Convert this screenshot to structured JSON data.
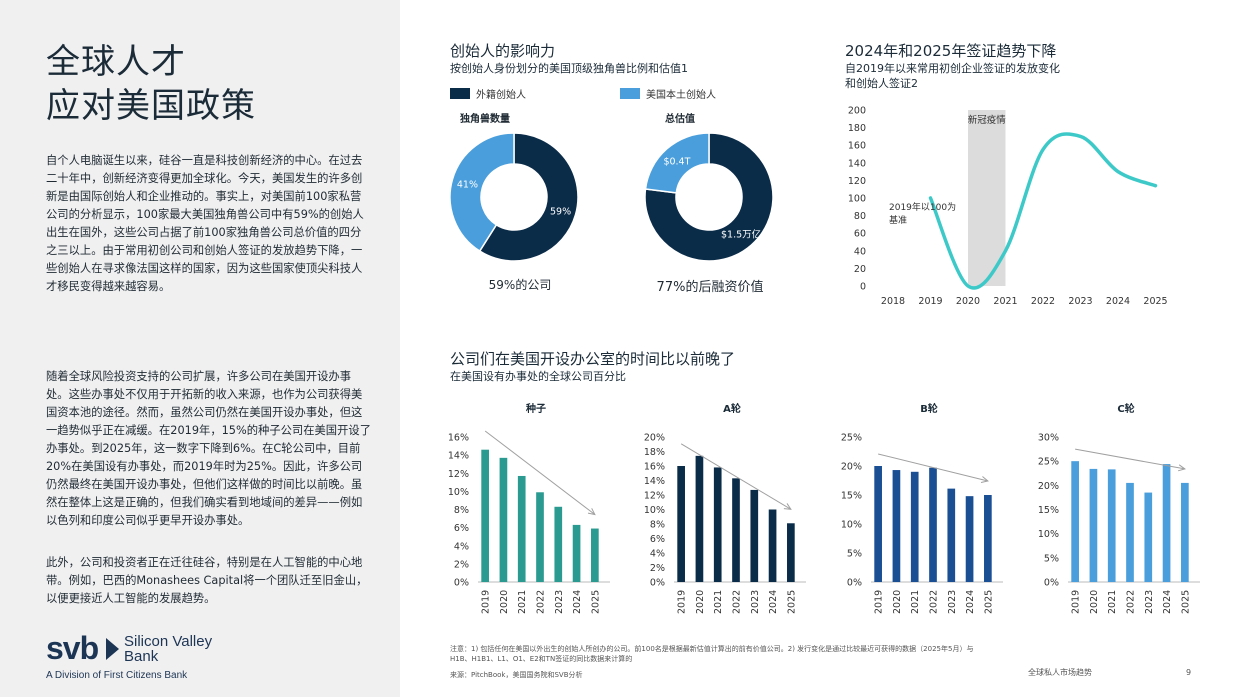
{
  "left": {
    "title_line1": "全球人才",
    "title_line2": "应对美国政策",
    "para1": "自个人电脑诞生以来，硅谷一直是科技创新经济的中心。在过去二十年中，创新经济变得更加全球化。今天，美国发生的许多创新是由国际创始人和企业推动的。事实上，对美国前100家私营公司的分析显示，100家最大美国独角兽公司中有59%的创始人出生在国外，这些公司占据了前100家独角兽公司总价值的四分之三以上。由于常用初创公司和创始人签证的发放趋势下降，一些创始人在寻求像法国这样的国家，因为这些国家使顶尖科技人才移民变得越来越容易。",
    "para2": "随着全球风险投资支持的公司扩展，许多公司在美国开设办事处。这些办事处不仅用于开拓新的收入来源，也作为公司获得美国资本池的途径。然而，虽然公司仍然在美国开设办事处，但这一趋势似乎正在减缓。在2019年，15%的种子公司在美国开设了办事处。到2025年，这一数字下降到6%。在C轮公司中，目前20%在美国设有办事处，而2019年时为25%。因此，许多公司仍然最终在美国开设办事处，但他们这样做的时间比以前晚。虽然在整体上这是正确的，但我们确实看到地域间的差异——例如以色列和印度公司似乎更早开设办事处。",
    "para3": "此外，公司和投资者正在迁往硅谷，特别是在人工智能的中心地带。例如，巴西的Monashees Capital将一个团队迁至旧金山，以便更接近人工智能的发展趋势。",
    "logo_mark": "svb",
    "logo_name": "Silicon Valley Bank",
    "logo_sub": "A Division of First Citizens Bank"
  },
  "founders": {
    "title": "创始人的影响力",
    "subtitle": "按创始人身份划分的美国顶级独角兽比例和估值1",
    "legend_foreign": "外籍创始人",
    "legend_native": "美国本土创始人",
    "donut1_title": "独角兽数量",
    "donut2_title": "总估值",
    "donut1_caption": "59%的公司",
    "donut2_caption": "77%的后融资价值"
  },
  "visa": {
    "title": "2024年和2025年签证趋势下降",
    "subtitle_line1": "自2019年以来常用初创企业签证的发放变化",
    "subtitle_line2": "和创始人签证2",
    "band_label": "新冠疫情",
    "base_label_line1": "2019年以100为",
    "base_label_line2": "基准"
  },
  "offices": {
    "title": "公司们在美国开设办公室的时间比以前晚了",
    "subtitle": "在美国设有办事处的全球公司百分比"
  },
  "footer": {
    "note": "注意：1) 包括任何在美国以外出生的创始人所创办的公司。前100名是根据最新估值计算出的前有价值公司。2) 发行变化是通过比较最近可获得的数据（2025年5月）与H1B、H1B1、L1、O1、E2和TN签证的同比数据来计算的",
    "source": "来源：PitchBook，美国国务院和SVB分析",
    "report": "全球私人市场趋势",
    "page": "9"
  },
  "colors": {
    "navy": "#0b2c49",
    "lightblue": "#4a9edb",
    "teal": "#2b9b91",
    "royal": "#1a4f94",
    "cyan": "#3ec9c9",
    "band": "#dcdcdc"
  },
  "chart_data": [
    {
      "type": "pie",
      "title": "独角兽数量",
      "categories": [
        "外籍创始人",
        "美国本土创始人"
      ],
      "values": [
        59,
        41
      ],
      "labels": [
        "59%",
        "41%"
      ]
    },
    {
      "type": "pie",
      "title": "总估值",
      "categories": [
        "外籍创始人",
        "美国本土创始人"
      ],
      "values": [
        77,
        23
      ],
      "labels": [
        "$1.5万亿",
        "$0.4T"
      ]
    },
    {
      "type": "line",
      "title": "2024年和2025年签证趋势下降",
      "x": [
        2018,
        2019,
        2020,
        2021,
        2022,
        2023,
        2024,
        2025
      ],
      "y": [
        null,
        100,
        0,
        40,
        155,
        170,
        130,
        114
      ],
      "ylim": [
        0,
        200
      ],
      "yticks": [
        0,
        20,
        40,
        60,
        80,
        100,
        120,
        140,
        160,
        180,
        200
      ],
      "shaded_range": [
        2020,
        2021
      ],
      "grid": false
    },
    {
      "type": "bar",
      "title": "种子",
      "categories": [
        "2019",
        "2020",
        "2021",
        "2022",
        "2023",
        "2024",
        "2025"
      ],
      "values": [
        14.6,
        13.7,
        11.7,
        9.9,
        8.3,
        6.3,
        5.9
      ],
      "ylim": [
        0,
        16
      ],
      "yticks": [
        "0%",
        "2%",
        "4%",
        "6%",
        "8%",
        "10%",
        "12%",
        "14%",
        "16%"
      ],
      "color": "#2b9b91"
    },
    {
      "type": "bar",
      "title": "A轮",
      "categories": [
        "2019",
        "2020",
        "2021",
        "2022",
        "2023",
        "2024",
        "2025"
      ],
      "values": [
        16.0,
        17.4,
        15.8,
        14.3,
        12.7,
        10.0,
        8.1
      ],
      "ylim": [
        0,
        20
      ],
      "yticks": [
        "0%",
        "2%",
        "4%",
        "6%",
        "8%",
        "10%",
        "12%",
        "14%",
        "16%",
        "18%",
        "20%"
      ],
      "color": "#0b2c49"
    },
    {
      "type": "bar",
      "title": "B轮",
      "categories": [
        "2019",
        "2020",
        "2021",
        "2022",
        "2023",
        "2024",
        "2025"
      ],
      "values": [
        20.0,
        19.3,
        19.0,
        19.7,
        16.1,
        14.8,
        15.0
      ],
      "ylim": [
        0,
        25
      ],
      "yticks": [
        "0%",
        "5%",
        "10%",
        "15%",
        "20%",
        "25%"
      ],
      "color": "#1a4f94"
    },
    {
      "type": "bar",
      "title": "C轮",
      "categories": [
        "2019",
        "2020",
        "2021",
        "2022",
        "2023",
        "2024",
        "2025"
      ],
      "values": [
        25.0,
        23.4,
        23.3,
        20.5,
        18.5,
        24.4,
        20.5
      ],
      "ylim": [
        0,
        30
      ],
      "yticks": [
        "0%",
        "5%",
        "10%",
        "15%",
        "20%",
        "25%",
        "30%"
      ],
      "color": "#4a9edb"
    }
  ]
}
